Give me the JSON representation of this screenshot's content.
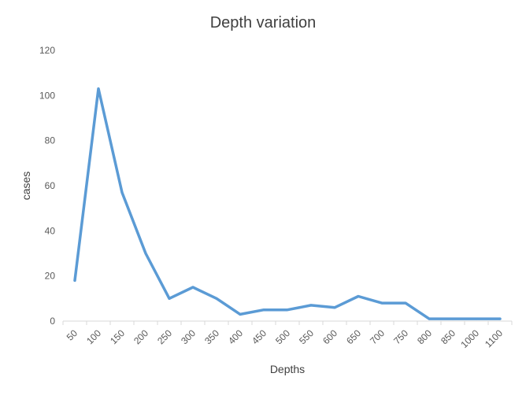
{
  "chart_data": {
    "type": "line",
    "title": "Depth variation",
    "xlabel": "Depths",
    "ylabel": "cases",
    "categories": [
      "50",
      "100",
      "150",
      "200",
      "250",
      "300",
      "350",
      "400",
      "450",
      "500",
      "550",
      "600",
      "650",
      "700",
      "750",
      "800",
      "850",
      "1000",
      "1100"
    ],
    "series": [
      {
        "values": [
          18,
          103,
          57,
          30,
          10,
          15,
          10,
          3,
          5,
          5,
          7,
          6,
          11,
          8,
          8,
          1,
          1,
          1,
          1
        ],
        "color": "#5B9BD5"
      }
    ],
    "ylim": [
      0,
      120
    ],
    "yticks": [
      0,
      20,
      40,
      60,
      80,
      100,
      120
    ],
    "grid": false,
    "legend": "none"
  }
}
